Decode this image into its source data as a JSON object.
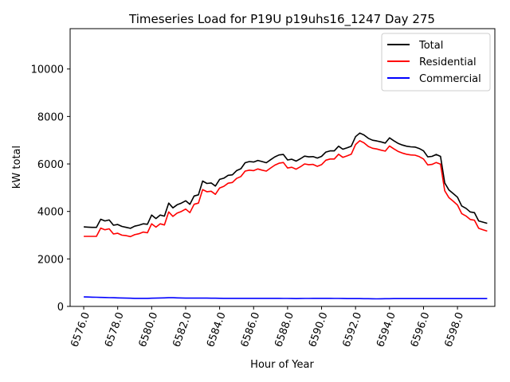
{
  "chart_data": {
    "type": "line",
    "title": "Timeseries Load for P19U p19uhs16_1247  Day 275",
    "xlabel": "Hour of Year",
    "ylabel": "kW total",
    "xlim": [
      6575.2,
      6600.2
    ],
    "ylim": [
      0,
      11700
    ],
    "grid": false,
    "legend_position": "top-right",
    "x_ticks": [
      6576.0,
      6578.0,
      6580.0,
      6582.0,
      6584.0,
      6586.0,
      6588.0,
      6590.0,
      6592.0,
      6594.0,
      6596.0,
      6598.0
    ],
    "x_tick_labels": [
      "6576.0",
      "6578.0",
      "6580.0",
      "6582.0",
      "6584.0",
      "6586.0",
      "6588.0",
      "6590.0",
      "6592.0",
      "6594.0",
      "6596.0",
      "6598.0"
    ],
    "y_ticks": [
      0,
      2000,
      4000,
      6000,
      8000,
      10000
    ],
    "y_tick_labels": [
      "0",
      "2000",
      "4000",
      "6000",
      "8000",
      "10000"
    ],
    "x": [
      6576.0,
      6576.25,
      6576.5,
      6576.75,
      6577.0,
      6577.25,
      6577.5,
      6577.75,
      6578.0,
      6578.25,
      6578.5,
      6578.75,
      6579.0,
      6579.25,
      6579.5,
      6579.75,
      6580.0,
      6580.25,
      6580.5,
      6580.75,
      6581.0,
      6581.25,
      6581.5,
      6581.75,
      6582.0,
      6582.25,
      6582.5,
      6582.75,
      6583.0,
      6583.25,
      6583.5,
      6583.75,
      6584.0,
      6584.25,
      6584.5,
      6584.75,
      6585.0,
      6585.25,
      6585.5,
      6585.75,
      6586.0,
      6586.25,
      6586.5,
      6586.75,
      6587.0,
      6587.25,
      6587.5,
      6587.75,
      6588.0,
      6588.25,
      6588.5,
      6588.75,
      6589.0,
      6589.25,
      6589.5,
      6589.75,
      6590.0,
      6590.25,
      6590.5,
      6590.75,
      6591.0,
      6591.25,
      6591.5,
      6591.75,
      6592.0,
      6592.25,
      6592.5,
      6592.75,
      6593.0,
      6593.25,
      6593.5,
      6593.75,
      6594.0,
      6594.25,
      6594.5,
      6594.75,
      6595.0,
      6595.25,
      6595.5,
      6595.75,
      6596.0,
      6596.25,
      6596.5,
      6596.75,
      6597.0,
      6597.25,
      6597.5,
      6597.75,
      6598.0,
      6598.25,
      6598.5,
      6598.75,
      6599.0,
      6599.25,
      6599.5,
      6599.75
    ],
    "series": [
      {
        "name": "Total",
        "color": "#000000",
        "values": [
          3350,
          3340,
          3330,
          3330,
          3670,
          3600,
          3640,
          3420,
          3450,
          3370,
          3330,
          3290,
          3380,
          3420,
          3480,
          3460,
          3850,
          3700,
          3850,
          3800,
          4350,
          4150,
          4280,
          4350,
          4450,
          4300,
          4650,
          4700,
          5280,
          5180,
          5200,
          5070,
          5350,
          5400,
          5520,
          5540,
          5720,
          5800,
          6050,
          6100,
          6080,
          6150,
          6100,
          6050,
          6180,
          6300,
          6380,
          6400,
          6170,
          6200,
          6120,
          6220,
          6330,
          6300,
          6310,
          6250,
          6320,
          6500,
          6550,
          6550,
          6750,
          6620,
          6680,
          6750,
          7150,
          7300,
          7220,
          7080,
          7000,
          6970,
          6930,
          6880,
          7100,
          6980,
          6870,
          6800,
          6750,
          6720,
          6710,
          6650,
          6550,
          6300,
          6320,
          6400,
          6320,
          5200,
          4900,
          4750,
          4600,
          4230,
          4130,
          3980,
          3950,
          3600,
          3550,
          3500
        ]
      },
      {
        "name": "Residential",
        "color": "#ff0000",
        "values": [
          2950,
          2950,
          2950,
          2950,
          3300,
          3230,
          3270,
          3050,
          3080,
          3000,
          2980,
          2940,
          3020,
          3060,
          3130,
          3100,
          3480,
          3340,
          3480,
          3430,
          3980,
          3790,
          3930,
          4000,
          4100,
          3950,
          4300,
          4350,
          4920,
          4830,
          4850,
          4720,
          4990,
          5060,
          5190,
          5220,
          5390,
          5470,
          5700,
          5740,
          5720,
          5790,
          5740,
          5700,
          5830,
          5950,
          6030,
          6060,
          5830,
          5860,
          5780,
          5880,
          6000,
          5970,
          5980,
          5900,
          5970,
          6160,
          6210,
          6210,
          6410,
          6280,
          6340,
          6410,
          6820,
          6980,
          6890,
          6740,
          6660,
          6630,
          6580,
          6540,
          6760,
          6640,
          6530,
          6460,
          6410,
          6380,
          6370,
          6310,
          6210,
          5960,
          5980,
          6060,
          5990,
          4870,
          4580,
          4430,
          4270,
          3910,
          3810,
          3660,
          3630,
          3290,
          3230,
          3170
        ]
      },
      {
        "name": "Commercial",
        "color": "#0000ff",
        "values": [
          400,
          395,
          390,
          385,
          380,
          375,
          370,
          365,
          360,
          355,
          350,
          345,
          340,
          340,
          340,
          340,
          345,
          350,
          355,
          360,
          365,
          365,
          360,
          355,
          350,
          350,
          350,
          350,
          350,
          348,
          346,
          344,
          342,
          340,
          340,
          340,
          340,
          340,
          340,
          340,
          340,
          340,
          340,
          340,
          340,
          340,
          338,
          336,
          334,
          332,
          330,
          332,
          334,
          336,
          338,
          340,
          340,
          340,
          338,
          336,
          334,
          332,
          330,
          330,
          330,
          328,
          326,
          324,
          322,
          320,
          322,
          324,
          326,
          328,
          330,
          330,
          330,
          330,
          330,
          330,
          330,
          330,
          330,
          330,
          330,
          330,
          330,
          330,
          330,
          330,
          330,
          330,
          330,
          330,
          330,
          330
        ]
      }
    ]
  }
}
